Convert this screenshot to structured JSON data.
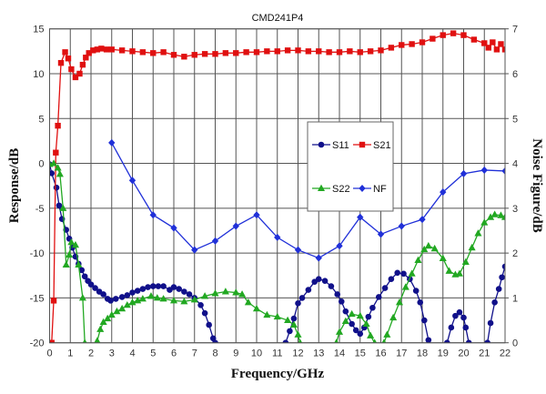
{
  "chart_data": {
    "type": "line",
    "title": "CMD241P4",
    "xlabel": "Frequency/GHz",
    "ylabel": "Response/dB",
    "y2label": "Noise Figure/dB",
    "xlim": [
      0,
      22
    ],
    "ylim": [
      -20,
      15
    ],
    "y2lim": [
      0,
      7
    ],
    "grid": true,
    "legend_position": "center-right",
    "xticks": [
      "0",
      "1",
      "2",
      "3",
      "4",
      "5",
      "6",
      "7",
      "8",
      "9",
      "10",
      "11",
      "12",
      "13",
      "14",
      "15",
      "16",
      "17",
      "18",
      "19",
      "20",
      "21",
      "22"
    ],
    "yticks": [
      "-20",
      "-15",
      "-10",
      "-5",
      "0",
      "5",
      "10",
      "15"
    ],
    "y2ticks": [
      "0",
      "1",
      "2",
      "3",
      "4",
      "5",
      "6",
      "7"
    ],
    "series": [
      {
        "name": "S11",
        "axis": "left",
        "color": "#10108a",
        "marker": "circle",
        "segments": [
          [
            [
              0,
              -0.1
            ],
            [
              0.1,
              -1.1
            ],
            [
              0.33,
              -2.7
            ],
            [
              0.46,
              -4.7
            ],
            [
              0.6,
              -6.2
            ],
            [
              0.8,
              -7.4
            ],
            [
              0.95,
              -8.4
            ],
            [
              1.1,
              -9.4
            ],
            [
              1.25,
              -10.4
            ],
            [
              1.4,
              -11.2
            ],
            [
              1.55,
              -11.9
            ],
            [
              1.7,
              -12.6
            ],
            [
              1.85,
              -13.1
            ],
            [
              2,
              -13.5
            ],
            [
              2.2,
              -13.9
            ],
            [
              2.4,
              -14.3
            ],
            [
              2.6,
              -14.6
            ],
            [
              2.8,
              -15.1
            ],
            [
              2.95,
              -15.3
            ],
            [
              3.2,
              -15.1
            ],
            [
              3.5,
              -14.9
            ],
            [
              3.75,
              -14.7
            ],
            [
              4,
              -14.4
            ],
            [
              4.25,
              -14.2
            ],
            [
              4.5,
              -14
            ],
            [
              4.75,
              -13.8
            ],
            [
              5,
              -13.7
            ],
            [
              5.25,
              -13.7
            ],
            [
              5.5,
              -13.7
            ],
            [
              5.8,
              -14.1
            ],
            [
              6,
              -13.8
            ],
            [
              6.25,
              -14
            ],
            [
              6.5,
              -14.3
            ],
            [
              6.75,
              -14.6
            ],
            [
              7,
              -15
            ],
            [
              7.3,
              -15.8
            ],
            [
              7.5,
              -16.7
            ],
            [
              7.7,
              -18
            ],
            [
              7.9,
              -19.5
            ],
            [
              8,
              -20
            ]
          ],
          [
            [
              11.4,
              -20
            ],
            [
              11.6,
              -18.7
            ],
            [
              11.8,
              -17.3
            ],
            [
              12,
              -15.6
            ],
            [
              12.2,
              -15
            ],
            [
              12.5,
              -14.1
            ],
            [
              12.8,
              -13.2
            ],
            [
              13,
              -12.9
            ],
            [
              13.3,
              -13.1
            ],
            [
              13.6,
              -13.7
            ],
            [
              13.9,
              -14.6
            ],
            [
              14.1,
              -15.4
            ],
            [
              14.3,
              -16.5
            ],
            [
              14.6,
              -17.9
            ],
            [
              14.8,
              -18.6
            ],
            [
              15,
              -19
            ],
            [
              15.2,
              -18.3
            ],
            [
              15.4,
              -17.1
            ],
            [
              15.6,
              -16.1
            ],
            [
              15.9,
              -14.9
            ],
            [
              16.2,
              -13.9
            ],
            [
              16.5,
              -12.9
            ],
            [
              16.8,
              -12.2
            ],
            [
              17.1,
              -12.3
            ],
            [
              17.4,
              -12.9
            ],
            [
              17.7,
              -14.2
            ],
            [
              17.9,
              -15.5
            ],
            [
              18.1,
              -17.5
            ],
            [
              18.3,
              -19.7
            ]
          ],
          [
            [
              19.2,
              -20
            ],
            [
              19.4,
              -18.3
            ],
            [
              19.6,
              -17
            ],
            [
              19.8,
              -16.6
            ],
            [
              20,
              -17.2
            ],
            [
              20.1,
              -18.3
            ],
            [
              20.25,
              -20
            ]
          ],
          [
            [
              21.15,
              -20
            ],
            [
              21.3,
              -17.8
            ],
            [
              21.5,
              -15.5
            ],
            [
              21.7,
              -14
            ],
            [
              21.85,
              -12.7
            ],
            [
              22,
              -11.5
            ]
          ]
        ]
      },
      {
        "name": "S21",
        "axis": "left",
        "color": "#e01010",
        "marker": "square",
        "segments": [
          [
            [
              0.1,
              -20
            ],
            [
              0.2,
              -15.3
            ],
            [
              0.3,
              1.2
            ],
            [
              0.4,
              4.2
            ],
            [
              0.55,
              11.2
            ],
            [
              0.75,
              12.4
            ],
            [
              0.9,
              11.7
            ],
            [
              1.05,
              10.5
            ],
            [
              1.25,
              9.6
            ],
            [
              1.45,
              10
            ],
            [
              1.6,
              11
            ],
            [
              1.75,
              11.8
            ],
            [
              1.9,
              12.3
            ],
            [
              2.1,
              12.6
            ],
            [
              2.3,
              12.7
            ],
            [
              2.5,
              12.8
            ],
            [
              2.75,
              12.7
            ],
            [
              3,
              12.7
            ],
            [
              3.5,
              12.6
            ],
            [
              4,
              12.5
            ],
            [
              4.5,
              12.4
            ],
            [
              5,
              12.3
            ],
            [
              5.5,
              12.4
            ],
            [
              6,
              12.1
            ],
            [
              6.5,
              11.9
            ],
            [
              7,
              12.1
            ],
            [
              7.5,
              12.2
            ],
            [
              8,
              12.2
            ],
            [
              8.5,
              12.3
            ],
            [
              9,
              12.3
            ],
            [
              9.5,
              12.4
            ],
            [
              10,
              12.4
            ],
            [
              10.5,
              12.5
            ],
            [
              11,
              12.5
            ],
            [
              11.5,
              12.6
            ],
            [
              12,
              12.6
            ],
            [
              12.5,
              12.5
            ],
            [
              13,
              12.5
            ],
            [
              13.5,
              12.4
            ],
            [
              14,
              12.4
            ],
            [
              14.5,
              12.5
            ],
            [
              15,
              12.4
            ],
            [
              15.5,
              12.5
            ],
            [
              16,
              12.6
            ],
            [
              16.5,
              12.9
            ],
            [
              17,
              13.2
            ],
            [
              17.5,
              13.3
            ],
            [
              18,
              13.5
            ],
            [
              18.5,
              13.9
            ],
            [
              19,
              14.3
            ],
            [
              19.5,
              14.5
            ],
            [
              20,
              14.3
            ],
            [
              20.5,
              13.8
            ],
            [
              21,
              13.4
            ],
            [
              21.2,
              12.9
            ],
            [
              21.4,
              13.5
            ],
            [
              21.6,
              12.7
            ],
            [
              21.8,
              13.3
            ],
            [
              22,
              12.7
            ]
          ]
        ]
      },
      {
        "name": "S22",
        "axis": "left",
        "color": "#22a822",
        "marker": "triangle",
        "segments": [
          [
            [
              0,
              -0.1
            ],
            [
              0.2,
              0
            ],
            [
              0.4,
              -0.5
            ],
            [
              0.5,
              -1.2
            ],
            [
              0.65,
              -5
            ],
            [
              0.8,
              -11.3
            ],
            [
              0.95,
              -10.2
            ],
            [
              1.05,
              -8.8
            ],
            [
              1.25,
              -9.1
            ],
            [
              1.4,
              -11.3
            ],
            [
              1.6,
              -15
            ],
            [
              1.7,
              -20
            ]
          ],
          [
            [
              2.3,
              -19.8
            ],
            [
              2.45,
              -18.5
            ],
            [
              2.6,
              -17.7
            ],
            [
              2.8,
              -17.3
            ],
            [
              3,
              -16.9
            ],
            [
              3.25,
              -16.5
            ],
            [
              3.5,
              -16.2
            ],
            [
              3.75,
              -15.8
            ],
            [
              4,
              -15.5
            ],
            [
              4.25,
              -15.3
            ],
            [
              4.5,
              -15.1
            ],
            [
              4.9,
              -14.8
            ],
            [
              5.2,
              -15
            ],
            [
              5.5,
              -15.1
            ],
            [
              6,
              -15.3
            ],
            [
              6.5,
              -15.4
            ],
            [
              7,
              -15.2
            ],
            [
              7.5,
              -14.8
            ],
            [
              8,
              -14.5
            ],
            [
              8.5,
              -14.3
            ],
            [
              9,
              -14.4
            ],
            [
              9.3,
              -14.6
            ],
            [
              9.6,
              -15.5
            ],
            [
              10,
              -16.2
            ],
            [
              10.5,
              -16.9
            ],
            [
              11,
              -17.1
            ],
            [
              11.5,
              -17.5
            ],
            [
              11.8,
              -18
            ],
            [
              12,
              -19.1
            ],
            [
              12.1,
              -20
            ]
          ],
          [
            [
              13.85,
              -20
            ],
            [
              14,
              -18.8
            ],
            [
              14.3,
              -17.6
            ],
            [
              14.6,
              -16.8
            ],
            [
              15,
              -17
            ],
            [
              15.3,
              -17.9
            ],
            [
              15.5,
              -19.2
            ],
            [
              15.7,
              -20
            ]
          ],
          [
            [
              16.15,
              -20
            ],
            [
              16.3,
              -19.1
            ],
            [
              16.6,
              -17.2
            ],
            [
              16.9,
              -15.5
            ],
            [
              17.2,
              -13.8
            ],
            [
              17.5,
              -12.3
            ],
            [
              17.8,
              -10.8
            ],
            [
              18.1,
              -9.6
            ],
            [
              18.3,
              -9.2
            ],
            [
              18.6,
              -9.5
            ],
            [
              19,
              -10.6
            ],
            [
              19.3,
              -12
            ],
            [
              19.6,
              -12.4
            ],
            [
              19.8,
              -12.3
            ],
            [
              20.1,
              -11
            ],
            [
              20.4,
              -9.4
            ],
            [
              20.7,
              -7.8
            ],
            [
              21,
              -6.6
            ],
            [
              21.3,
              -6
            ],
            [
              21.5,
              -5.7
            ],
            [
              21.8,
              -5.8
            ],
            [
              22,
              -6
            ]
          ]
        ]
      },
      {
        "name": "NF",
        "axis": "right",
        "color": "#2030d8",
        "marker": "diamond",
        "segments": [
          [
            [
              3,
              4.46
            ],
            [
              4,
              3.62
            ],
            [
              5,
              2.85
            ],
            [
              6,
              2.56
            ],
            [
              7,
              2.07
            ],
            [
              8,
              2.27
            ],
            [
              9,
              2.6
            ],
            [
              10,
              2.85
            ],
            [
              11,
              2.35
            ],
            [
              12,
              2.07
            ],
            [
              13,
              1.89
            ],
            [
              14,
              2.16
            ],
            [
              15,
              2.8
            ],
            [
              16,
              2.42
            ],
            [
              17,
              2.6
            ],
            [
              18,
              2.75
            ],
            [
              19,
              3.36
            ],
            [
              20,
              3.77
            ],
            [
              21,
              3.85
            ],
            [
              22,
              3.83
            ]
          ]
        ]
      }
    ]
  }
}
